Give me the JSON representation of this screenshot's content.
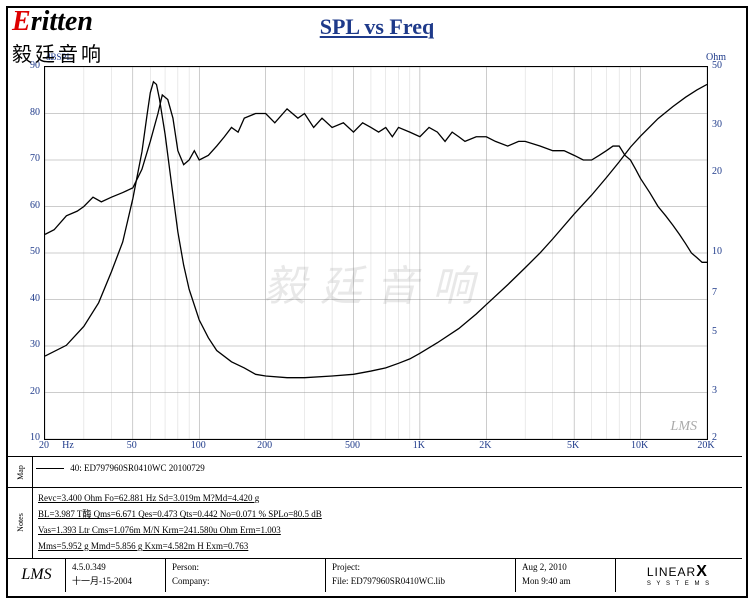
{
  "logo": {
    "brand_red": "E",
    "brand_rest": "ritten",
    "subtitle": "毅廷音响"
  },
  "title": "SPL vs Freq",
  "chart": {
    "type": "line",
    "x_scale": "log",
    "x_min": 20,
    "x_max": 20000,
    "x_ticks": [
      20,
      50,
      100,
      200,
      500,
      1000,
      2000,
      5000,
      10000,
      20000
    ],
    "x_tick_labels": [
      "20",
      "50",
      "100",
      "200",
      "500",
      "1K",
      "2K",
      "5K",
      "10K",
      "20K"
    ],
    "x_unit": "Hz",
    "y_left_min": 10,
    "y_left_max": 90,
    "y_left_ticks": [
      10,
      20,
      30,
      40,
      50,
      60,
      70,
      80,
      90
    ],
    "y_left_unit": "dBSPL",
    "y_right_min": 2,
    "y_right_max": 50,
    "y_right_scale": "log",
    "y_right_ticks": [
      2,
      3,
      5,
      7,
      10,
      20,
      30,
      50
    ],
    "y_right_unit": "Ohm",
    "background_color": "#ffffff",
    "grid_color": "#999999",
    "line_color": "#000000",
    "line_width": 1.3,
    "watermark_text": "毅廷音响",
    "watermark_color": "rgba(100,100,100,0.15)",
    "lms_mark": "LMS",
    "spl_points": [
      [
        20,
        54
      ],
      [
        22,
        55
      ],
      [
        25,
        58
      ],
      [
        28,
        59
      ],
      [
        30,
        60
      ],
      [
        33,
        62
      ],
      [
        36,
        61
      ],
      [
        40,
        62
      ],
      [
        45,
        63
      ],
      [
        50,
        64
      ],
      [
        55,
        68
      ],
      [
        60,
        74
      ],
      [
        65,
        80
      ],
      [
        68,
        84
      ],
      [
        72,
        83
      ],
      [
        76,
        79
      ],
      [
        80,
        72
      ],
      [
        85,
        69
      ],
      [
        90,
        70
      ],
      [
        95,
        72
      ],
      [
        100,
        70
      ],
      [
        110,
        71
      ],
      [
        120,
        73
      ],
      [
        130,
        75
      ],
      [
        140,
        77
      ],
      [
        150,
        76
      ],
      [
        160,
        79
      ],
      [
        180,
        80
      ],
      [
        200,
        80
      ],
      [
        220,
        78
      ],
      [
        250,
        81
      ],
      [
        280,
        79
      ],
      [
        300,
        80
      ],
      [
        330,
        77
      ],
      [
        360,
        79
      ],
      [
        400,
        77
      ],
      [
        450,
        78
      ],
      [
        500,
        76
      ],
      [
        550,
        78
      ],
      [
        600,
        77
      ],
      [
        650,
        76
      ],
      [
        700,
        77
      ],
      [
        750,
        75
      ],
      [
        800,
        77
      ],
      [
        900,
        76
      ],
      [
        1000,
        75
      ],
      [
        1100,
        77
      ],
      [
        1200,
        76
      ],
      [
        1300,
        74
      ],
      [
        1400,
        76
      ],
      [
        1500,
        75
      ],
      [
        1600,
        74
      ],
      [
        1800,
        75
      ],
      [
        2000,
        75
      ],
      [
        2200,
        74
      ],
      [
        2500,
        73
      ],
      [
        2800,
        74
      ],
      [
        3000,
        74
      ],
      [
        3500,
        73
      ],
      [
        4000,
        72
      ],
      [
        4500,
        72
      ],
      [
        5000,
        71
      ],
      [
        5500,
        70
      ],
      [
        6000,
        70
      ],
      [
        6500,
        71
      ],
      [
        7000,
        72
      ],
      [
        7500,
        73
      ],
      [
        8000,
        73
      ],
      [
        8500,
        71
      ],
      [
        9000,
        70
      ],
      [
        9500,
        68
      ],
      [
        10000,
        66
      ],
      [
        11000,
        63
      ],
      [
        12000,
        60
      ],
      [
        13000,
        58
      ],
      [
        14000,
        56
      ],
      [
        15000,
        54
      ],
      [
        16000,
        52
      ],
      [
        17000,
        50
      ],
      [
        18000,
        49
      ],
      [
        19000,
        48
      ],
      [
        20000,
        48
      ]
    ],
    "impedance_points": [
      [
        20,
        4.1
      ],
      [
        25,
        4.5
      ],
      [
        30,
        5.3
      ],
      [
        35,
        6.5
      ],
      [
        40,
        8.5
      ],
      [
        45,
        11
      ],
      [
        50,
        16
      ],
      [
        55,
        24
      ],
      [
        58,
        33
      ],
      [
        60,
        40
      ],
      [
        62,
        44
      ],
      [
        64,
        43
      ],
      [
        66,
        38
      ],
      [
        70,
        28
      ],
      [
        75,
        18
      ],
      [
        80,
        12
      ],
      [
        85,
        9
      ],
      [
        90,
        7.3
      ],
      [
        100,
        5.6
      ],
      [
        110,
        4.8
      ],
      [
        120,
        4.3
      ],
      [
        140,
        3.9
      ],
      [
        160,
        3.7
      ],
      [
        180,
        3.5
      ],
      [
        200,
        3.45
      ],
      [
        250,
        3.4
      ],
      [
        300,
        3.4
      ],
      [
        400,
        3.45
      ],
      [
        500,
        3.5
      ],
      [
        600,
        3.6
      ],
      [
        700,
        3.7
      ],
      [
        800,
        3.85
      ],
      [
        900,
        4.0
      ],
      [
        1000,
        4.2
      ],
      [
        1200,
        4.6
      ],
      [
        1500,
        5.2
      ],
      [
        1800,
        5.9
      ],
      [
        2000,
        6.4
      ],
      [
        2500,
        7.6
      ],
      [
        3000,
        8.8
      ],
      [
        3500,
        10
      ],
      [
        4000,
        11.3
      ],
      [
        5000,
        14
      ],
      [
        6000,
        16.5
      ],
      [
        7000,
        19.2
      ],
      [
        8000,
        22
      ],
      [
        9000,
        25
      ],
      [
        10000,
        27.5
      ],
      [
        12000,
        32
      ],
      [
        14000,
        35.5
      ],
      [
        16000,
        38.5
      ],
      [
        18000,
        41
      ],
      [
        20000,
        43
      ]
    ]
  },
  "map": {
    "side_label": "Map",
    "legend_text": "40: ED797960SR0410WC  20100729"
  },
  "notes": {
    "side_label": "Notes",
    "lines": [
      "Revc=3.400 Ohm  Fo=62.881 Hz  Sd=3.019m M?Md=4.420 g",
      "BL=3.987 T酶  Qms=6.671  Qes=0.473  Qts=0.442  No=0.071 %  SPLo=80.5 dB",
      "Vas=1.393 Ltr  Cms=1.076m M/N  Krm=241.580u Ohm  Erm=1.003",
      "Mms=5.952 g  Mmd=5.856 g  Kxm=4.582m H  Exm=0.763"
    ]
  },
  "footer": {
    "lms": "LMS",
    "version": "4.5.0.349",
    "version_date": "十一月-15-2004",
    "person_label": "Person:",
    "company_label": "Company:",
    "project_label": "Project:",
    "file_label": "File: ED797960SR0410WC.lib",
    "date1": "Aug 2, 2010",
    "date2": "Mon 9:40 am",
    "linearx": "LINEAR",
    "linearx_x": "X",
    "linearx_sys": "S Y S T E M S"
  }
}
